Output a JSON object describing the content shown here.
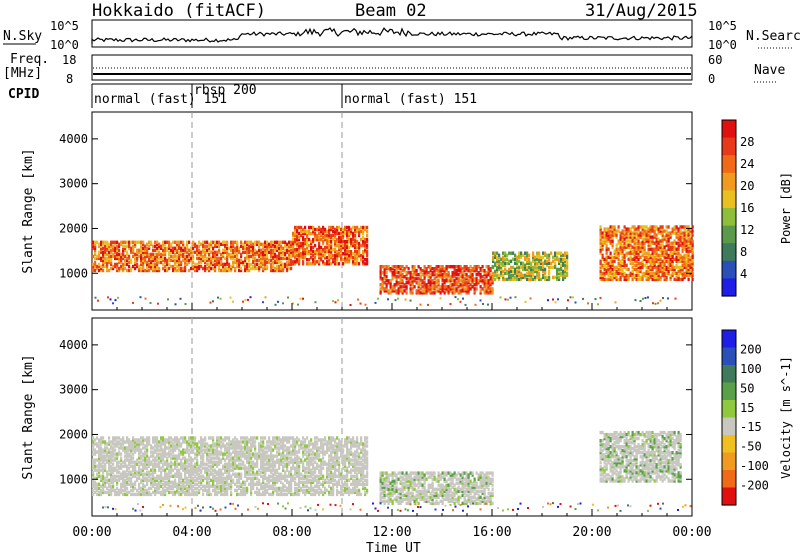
{
  "header": {
    "radar": "Hokkaido (fitACF)",
    "beam": "Beam 02",
    "date": "31/Aug/2015"
  },
  "top_panels": {
    "nsky_label": "N.Sky",
    "nsearch_label": "N.Search",
    "nsky_ticks": [
      "10^5",
      "10^0"
    ],
    "nsearch_ticks": [
      "10^5",
      "10^0"
    ],
    "freq_label_1": "Freq.",
    "freq_label_2": "[MHz]",
    "freq_ticks": [
      "18",
      "8"
    ],
    "nave_label": "Nave",
    "nave_ticks": [
      "60",
      "0"
    ],
    "cpid_label": "CPID",
    "cpid_segments": [
      {
        "label": "normal (fast) 151",
        "start_hour": 0
      },
      {
        "label": "rbsp 200",
        "start_hour": 4
      },
      {
        "label": "normal (fast) 151",
        "start_hour": 10
      }
    ]
  },
  "chart_data": [
    {
      "type": "heatmap",
      "quantity": "Power",
      "ylabel": "Slant Range [km]",
      "ylim": [
        180,
        4600
      ],
      "yticks": [
        "1000",
        "2000",
        "3000",
        "4000"
      ],
      "xlim_hours": [
        0,
        24
      ],
      "colorbar": {
        "label": "Power [dB]",
        "ticks": [
          "4",
          "8",
          "12",
          "16",
          "20",
          "24",
          "28"
        ],
        "colors": [
          "#1e1ee6",
          "#2a4fb8",
          "#3f7a5a",
          "#5a9a4a",
          "#8fbf3a",
          "#e8c020",
          "#f09a20",
          "#f06a18",
          "#e83a18",
          "#e01010"
        ]
      },
      "scatter_regions": [
        {
          "t0": 0,
          "t1": 8,
          "r0": 1100,
          "r1": 1750,
          "power": 22
        },
        {
          "t0": 8,
          "t1": 11,
          "r0": 1250,
          "r1": 2100,
          "power": 24
        },
        {
          "t0": 11.5,
          "t1": 16,
          "r0": 600,
          "r1": 1200,
          "power": 25
        },
        {
          "t0": 16,
          "t1": 19,
          "r0": 900,
          "r1": 1500,
          "power": 14
        },
        {
          "t0": 20.3,
          "t1": 24,
          "r0": 900,
          "r1": 2100,
          "power": 22
        }
      ]
    },
    {
      "type": "heatmap",
      "quantity": "Velocity",
      "ylabel": "Slant Range [km]",
      "ylim": [
        180,
        4600
      ],
      "yticks": [
        "1000",
        "2000",
        "3000",
        "4000"
      ],
      "xlim_hours": [
        0,
        24
      ],
      "colorbar": {
        "label": "Velocity [m s^-1]",
        "ticks": [
          "200",
          "100",
          "50",
          "15",
          "-15",
          "-50",
          "-100",
          "-200"
        ],
        "colors": [
          "#1e1ee6",
          "#2a4fb8",
          "#3f7a5a",
          "#5aa04a",
          "#90c840",
          "#c8c8c0",
          "#f0c020",
          "#f09a20",
          "#f06a18",
          "#e01010"
        ]
      },
      "scatter_regions": [
        {
          "t0": 0,
          "t1": 11,
          "r0": 700,
          "r1": 2000,
          "velocity": 0
        },
        {
          "t0": 11.5,
          "t1": 16,
          "r0": 500,
          "r1": 1200,
          "velocity": 40
        },
        {
          "t0": 20.3,
          "t1": 23.5,
          "r0": 1000,
          "r1": 2100,
          "velocity": 50
        }
      ]
    }
  ],
  "x_axis": {
    "ticks": [
      "00:00",
      "04:00",
      "08:00",
      "12:00",
      "16:00",
      "20:00",
      "00:00"
    ],
    "label": "Time UT"
  }
}
